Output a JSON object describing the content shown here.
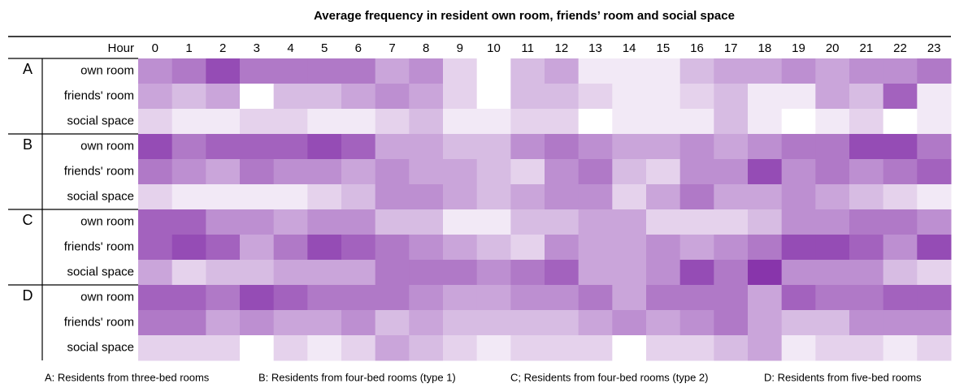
{
  "chart_data": {
    "type": "heatmap",
    "title": "Average frequency in resident own room, friends’ room and social space",
    "x_label": "Hour",
    "categories": [
      0,
      1,
      2,
      3,
      4,
      5,
      6,
      7,
      8,
      9,
      10,
      11,
      12,
      13,
      14,
      15,
      16,
      17,
      18,
      19,
      20,
      21,
      22,
      23
    ],
    "zlim": [
      0,
      10
    ],
    "colors": [
      "#ffffff",
      "#7b1fa2"
    ],
    "groups": [
      {
        "name": "A",
        "rows": [
          {
            "name": "own room",
            "values": [
              5,
              6,
              8,
              6,
              6,
              6,
              6,
              4,
              5,
              2,
              0,
              3,
              4,
              1,
              1,
              1,
              3,
              4,
              4,
              5,
              4,
              5,
              5,
              6
            ]
          },
          {
            "name": "friends' room",
            "values": [
              4,
              3,
              4,
              0,
              3,
              3,
              4,
              5,
              4,
              2,
              0,
              3,
              3,
              2,
              1,
              1,
              2,
              3,
              1,
              1,
              4,
              3,
              7,
              1
            ]
          },
          {
            "name": "social space",
            "values": [
              2,
              1,
              1,
              2,
              2,
              1,
              1,
              2,
              3,
              1,
              1,
              2,
              2,
              0,
              1,
              1,
              1,
              3,
              1,
              0,
              1,
              2,
              0,
              1
            ]
          }
        ]
      },
      {
        "name": "B",
        "rows": [
          {
            "name": "own room",
            "values": [
              8,
              6,
              7,
              7,
              7,
              8,
              7,
              4,
              4,
              3,
              3,
              5,
              6,
              5,
              4,
              4,
              5,
              4,
              5,
              6,
              6,
              8,
              8,
              6
            ]
          },
          {
            "name": "friends' room",
            "values": [
              6,
              5,
              4,
              6,
              5,
              5,
              4,
              5,
              4,
              4,
              3,
              2,
              5,
              6,
              3,
              2,
              5,
              5,
              8,
              5,
              6,
              5,
              6,
              7
            ]
          },
          {
            "name": "social space",
            "values": [
              2,
              1,
              1,
              1,
              1,
              2,
              3,
              5,
              5,
              4,
              3,
              4,
              5,
              5,
              2,
              4,
              6,
              4,
              4,
              5,
              4,
              3,
              2,
              1
            ]
          }
        ]
      },
      {
        "name": "C",
        "rows": [
          {
            "name": "own room",
            "values": [
              7,
              7,
              5,
              5,
              4,
              5,
              5,
              3,
              3,
              1,
              1,
              3,
              3,
              4,
              4,
              2,
              2,
              2,
              3,
              5,
              5,
              6,
              6,
              5
            ]
          },
          {
            "name": "friends' room",
            "values": [
              7,
              8,
              7,
              4,
              6,
              8,
              7,
              6,
              5,
              4,
              3,
              2,
              5,
              4,
              4,
              5,
              4,
              5,
              6,
              8,
              8,
              7,
              5,
              8
            ]
          },
          {
            "name": "social space",
            "values": [
              4,
              2,
              3,
              3,
              4,
              4,
              4,
              6,
              6,
              6,
              5,
              6,
              7,
              4,
              4,
              5,
              8,
              6,
              9,
              5,
              5,
              5,
              3,
              2
            ]
          }
        ]
      },
      {
        "name": "D",
        "rows": [
          {
            "name": "own room",
            "values": [
              7,
              7,
              6,
              8,
              7,
              6,
              6,
              6,
              5,
              4,
              4,
              5,
              5,
              6,
              4,
              6,
              6,
              6,
              4,
              7,
              6,
              6,
              7,
              7
            ]
          },
          {
            "name": "friends' room",
            "values": [
              6,
              6,
              4,
              5,
              4,
              4,
              5,
              3,
              4,
              3,
              3,
              3,
              3,
              4,
              5,
              4,
              5,
              6,
              4,
              3,
              3,
              5,
              5,
              5
            ]
          },
          {
            "name": "social space",
            "values": [
              2,
              2,
              2,
              0,
              2,
              1,
              2,
              4,
              3,
              2,
              1,
              2,
              2,
              2,
              0,
              2,
              2,
              3,
              4,
              1,
              2,
              2,
              1,
              2
            ]
          }
        ]
      }
    ],
    "notes": [
      "A: Residents from three-bed rooms",
      "B: Residents from four-bed rooms (type 1)",
      "C; Residents from four-bed rooms (type 2)",
      "D: Residents from five-bed rooms"
    ]
  }
}
